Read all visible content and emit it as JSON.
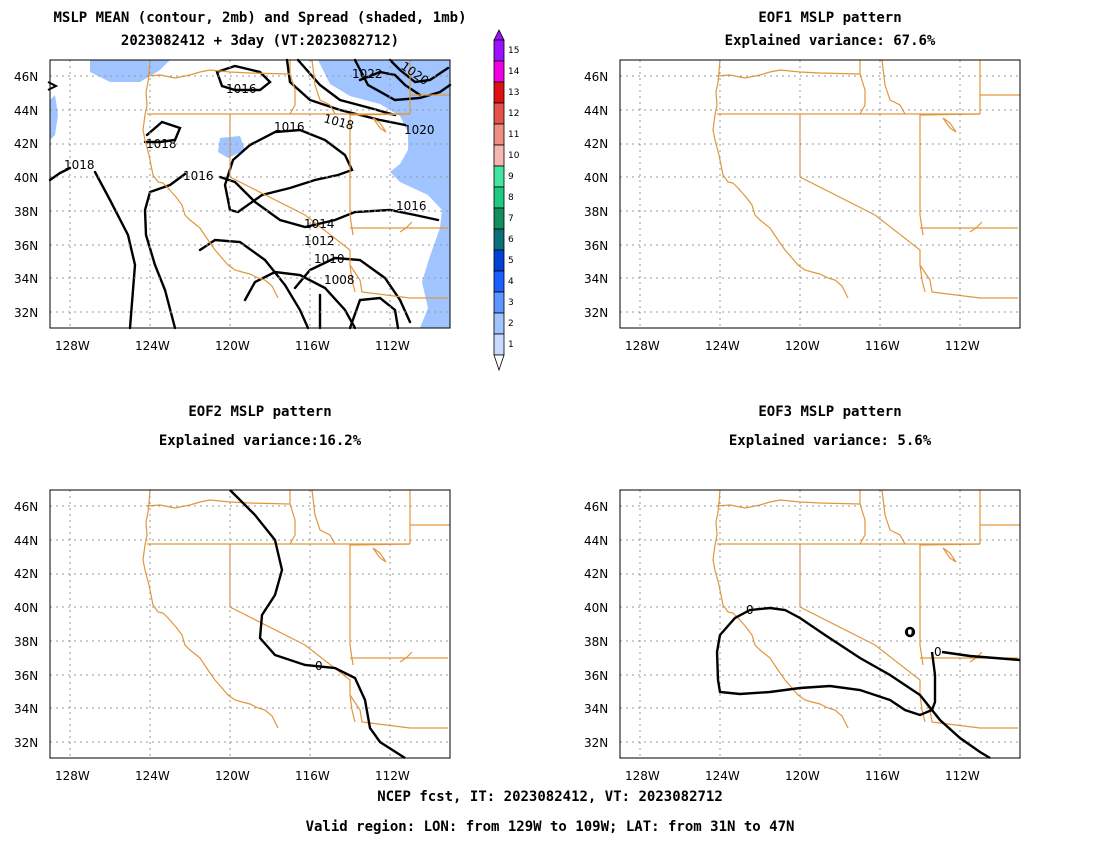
{
  "titles": {
    "p1_line1": "MSLP MEAN (contour, 2mb) and Spread (shaded, 1mb)",
    "p1_line2": "2023082412 + 3day (VT:2023082712)",
    "p2_line1": "EOF1 MSLP pattern",
    "p2_line2": "Explained variance: 67.6%",
    "p3_line1": "EOF2 MSLP pattern",
    "p3_line2": "Explained variance:16.2%",
    "p4_line1": "EOF3 MSLP pattern",
    "p4_line2": "Explained variance: 5.6%"
  },
  "axes": {
    "lon_labels": [
      "128W",
      "124W",
      "120W",
      "116W",
      "112W"
    ],
    "lat_labels": [
      "46N",
      "44N",
      "42N",
      "40N",
      "38N",
      "36N",
      "34N",
      "32N"
    ]
  },
  "colors": {
    "border": "#e2963c",
    "spread": "#9fc4ff",
    "contour": "#000000",
    "grid": "#999999"
  },
  "colorbar": {
    "labels": [
      "1",
      "2",
      "3",
      "4",
      "5",
      "6",
      "7",
      "8",
      "9",
      "10",
      "11",
      "12",
      "13",
      "14",
      "15"
    ],
    "colors": [
      "#c9d9ff",
      "#9fc4ff",
      "#5e96ff",
      "#1b5fff",
      "#0041d8",
      "#0b6f7a",
      "#138e5c",
      "#1ec982",
      "#42e6a0",
      "#f6b7b1",
      "#ef8e84",
      "#e4524a",
      "#e01010",
      "#f200e6",
      "#9a10ff"
    ]
  },
  "contour_labels_p1": [
    "1022",
    "1020",
    "1020",
    "1016",
    "1018",
    "1016",
    "1018",
    "1018",
    "1016",
    "1016",
    "1014",
    "1012",
    "1010",
    "1008"
  ],
  "contour_labels_p3": [
    "0"
  ],
  "contour_labels_p4": [
    "0",
    "0",
    "0"
  ],
  "footer": {
    "line1": "NCEP fcst, IT: 2023082412, VT: 2023082712",
    "line2": "Valid region: LON: from 129W to 109W; LAT: from 31N to 47N"
  }
}
